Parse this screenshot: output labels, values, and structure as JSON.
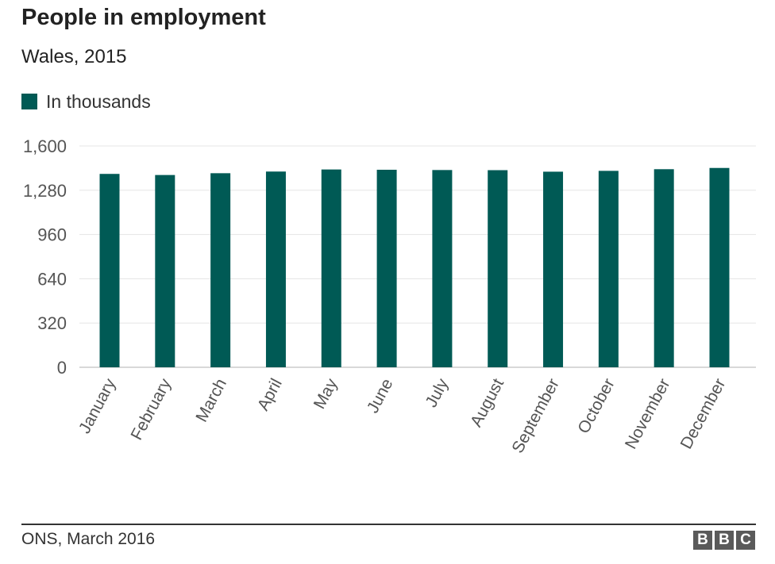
{
  "header": {
    "title": "People in employment",
    "subtitle": "Wales, 2015"
  },
  "legend": {
    "label": "In thousands",
    "color": "#005a55"
  },
  "chart_data": {
    "type": "bar",
    "title": "People in employment",
    "subtitle": "Wales, 2015",
    "xlabel": "",
    "ylabel": "",
    "categories": [
      "January",
      "February",
      "March",
      "April",
      "May",
      "June",
      "July",
      "August",
      "September",
      "October",
      "November",
      "December"
    ],
    "series": [
      {
        "name": "In thousands",
        "color": "#005a55",
        "values": [
          1398,
          1390,
          1403,
          1415,
          1430,
          1428,
          1426,
          1425,
          1414,
          1420,
          1432,
          1441
        ]
      }
    ],
    "ylim": [
      0,
      1600
    ],
    "yticks": [
      "0",
      "320",
      "640",
      "960",
      "1,280",
      "1,600"
    ],
    "ytick_values": [
      0,
      320,
      640,
      960,
      1280,
      1600
    ],
    "grid": true,
    "legend_position": "top-left"
  },
  "footer": {
    "source": "ONS, March 2016",
    "logo_letters": [
      "B",
      "B",
      "C"
    ]
  },
  "colors": {
    "bar": "#005a55",
    "grid": "#e5e5e5",
    "axis_text": "#555555",
    "logo_block": "#5a5a5a"
  }
}
